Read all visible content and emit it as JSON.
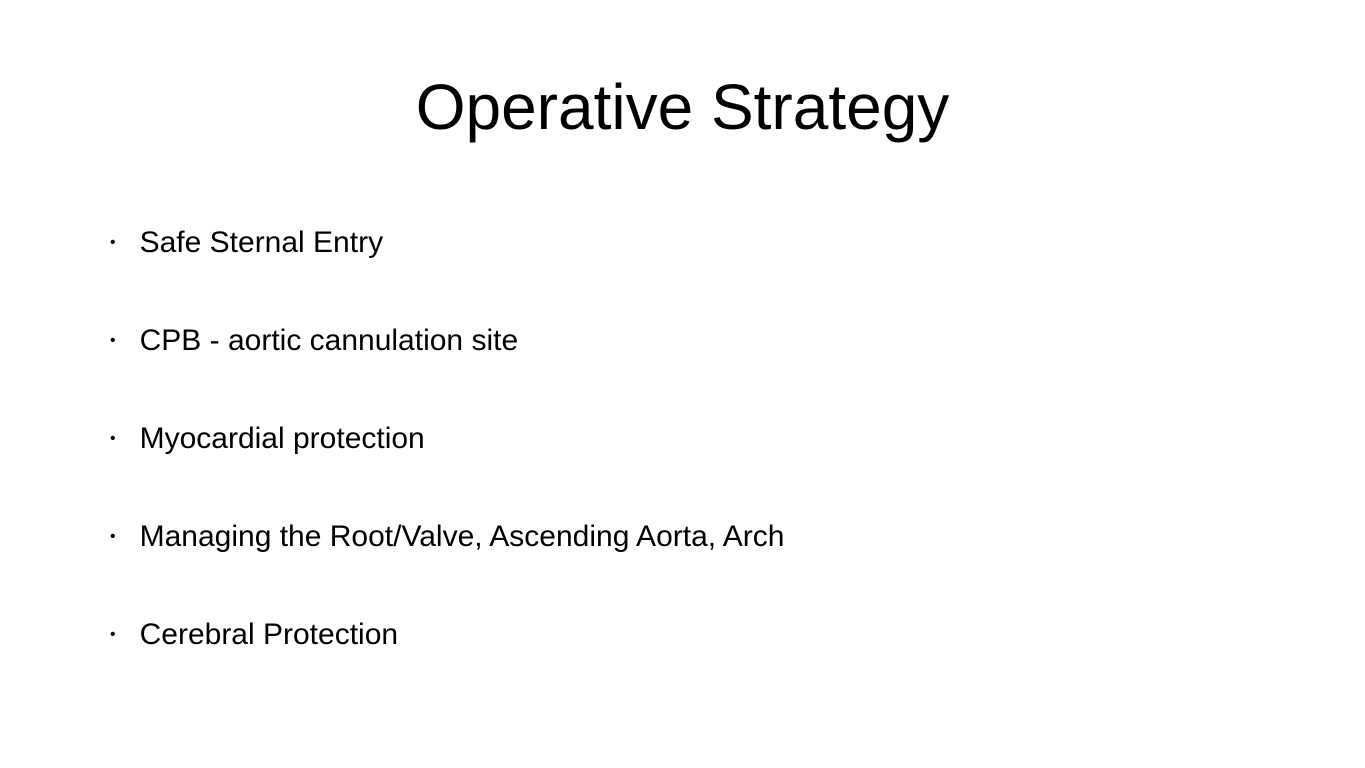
{
  "slide": {
    "title": "Operative Strategy",
    "title_fontsize": 64,
    "title_color": "#000000",
    "title_weight": 400,
    "background_color": "#ffffff",
    "bullets": [
      {
        "text": "Safe Sternal Entry"
      },
      {
        "text": "CPB - aortic cannulation site"
      },
      {
        "text": "Myocardial protection"
      },
      {
        "text": "Managing the Root/Valve, Ascending Aorta, Arch"
      },
      {
        "text": "Cerebral Protection"
      }
    ],
    "bullet_fontsize": 30,
    "bullet_color": "#000000",
    "bullet_marker": "•",
    "bullet_marker_fontsize": 16,
    "bullet_spacing": 60
  }
}
